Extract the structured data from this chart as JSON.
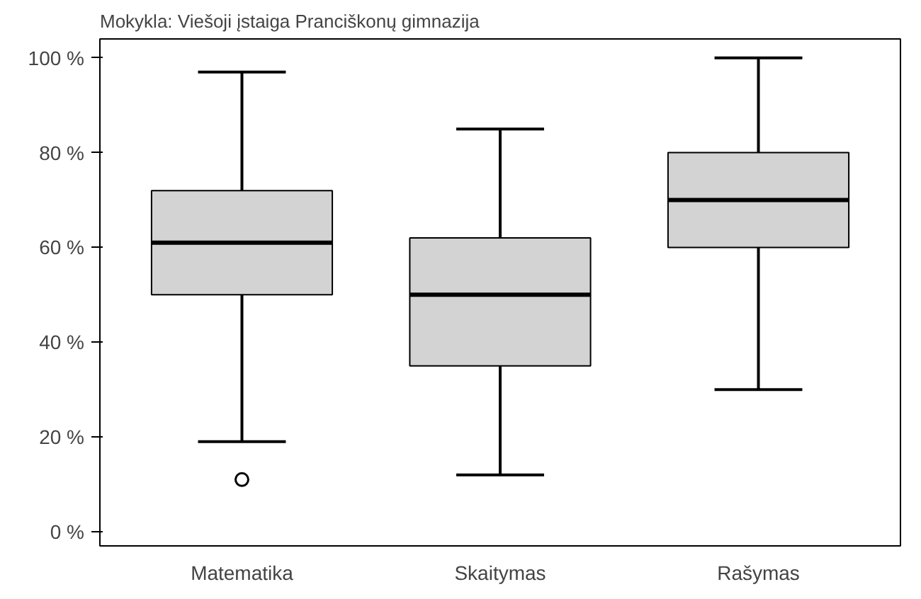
{
  "chart_data": {
    "type": "box",
    "title": "Mokykla: Viešoji įstaiga Pranciškonų gimnazija",
    "categories": [
      "Matematika",
      "Skaitymas",
      "Rašymas"
    ],
    "color": "#d3d3d3",
    "boxes": [
      {
        "low": 19,
        "q1": 50,
        "median": 61,
        "q3": 72,
        "high": 97,
        "outliers": [
          11
        ]
      },
      {
        "low": 12,
        "q1": 35,
        "median": 50,
        "q3": 62,
        "high": 85
      },
      {
        "low": 30,
        "q1": 60,
        "median": 70,
        "q3": 80,
        "high": 100
      }
    ],
    "ylim": [
      -3,
      104
    ],
    "yticks": [
      {
        "value": 0,
        "label": "0 %"
      },
      {
        "value": 20,
        "label": "20 %"
      },
      {
        "value": 40,
        "label": "40 %"
      },
      {
        "value": 60,
        "label": "60 %"
      },
      {
        "value": 80,
        "label": "80 %"
      },
      {
        "value": 100,
        "label": "100 %"
      }
    ],
    "grid": false
  }
}
